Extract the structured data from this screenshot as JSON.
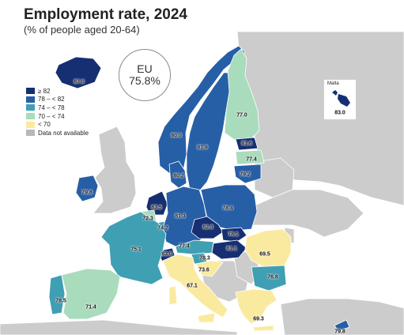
{
  "title": "Employment rate, 2024",
  "subtitle": "(% of people aged 20-64)",
  "eu": {
    "name": "EU",
    "value": "75.8%"
  },
  "colors": {
    "c82": "#162f72",
    "c78": "#275fa6",
    "c74": "#3f9fb3",
    "c70": "#a8dcbc",
    "c0": "#faeaa0",
    "na": "#cccccc",
    "sea": "#ffffff",
    "border": "#ffffff"
  },
  "legend": [
    {
      "label": "≥ 82",
      "color": "#162f72"
    },
    {
      "label": "78 – < 82",
      "color": "#275fa6"
    },
    {
      "label": "74 – < 78",
      "color": "#3f9fb3"
    },
    {
      "label": "70 – < 74",
      "color": "#a8dcbc"
    },
    {
      "label": "< 70",
      "color": "#faeaa0"
    },
    {
      "label": "Data not available",
      "color": "#b8b8b8"
    }
  ],
  "inset": {
    "name": "Malta",
    "value": "83.0"
  },
  "countries": [
    {
      "id": "iceland",
      "value": "87.0"
    },
    {
      "id": "norway",
      "value": "80.0"
    },
    {
      "id": "sweden",
      "value": "81.9"
    },
    {
      "id": "finland",
      "value": "77.0"
    },
    {
      "id": "estonia",
      "value": "81.6"
    },
    {
      "id": "latvia",
      "value": "77.4"
    },
    {
      "id": "lithuania",
      "value": "79.2"
    },
    {
      "id": "denmark",
      "value": "80.2"
    },
    {
      "id": "ireland",
      "value": "79.8"
    },
    {
      "id": "netherlands",
      "value": "83.5"
    },
    {
      "id": "belgium",
      "value": "72.3"
    },
    {
      "id": "luxembourg",
      "value": "74.2"
    },
    {
      "id": "germany",
      "value": "81.3"
    },
    {
      "id": "poland",
      "value": "78.4"
    },
    {
      "id": "czechia",
      "value": "82.3"
    },
    {
      "id": "slovakia",
      "value": "78.1"
    },
    {
      "id": "hungary",
      "value": "81.1"
    },
    {
      "id": "austria",
      "value": "77.4"
    },
    {
      "id": "switzerland",
      "value": "83.0"
    },
    {
      "id": "slovenia",
      "value": "78.3"
    },
    {
      "id": "croatia",
      "value": "73.6"
    },
    {
      "id": "france",
      "value": "75.1"
    },
    {
      "id": "romania",
      "value": "69.5"
    },
    {
      "id": "bulgaria",
      "value": "76.8"
    },
    {
      "id": "italy",
      "value": "67.1"
    },
    {
      "id": "portugal",
      "value": "78.5"
    },
    {
      "id": "spain",
      "value": "71.4"
    },
    {
      "id": "greece",
      "value": "69.3"
    },
    {
      "id": "cyprus",
      "value": "79.8"
    }
  ]
}
